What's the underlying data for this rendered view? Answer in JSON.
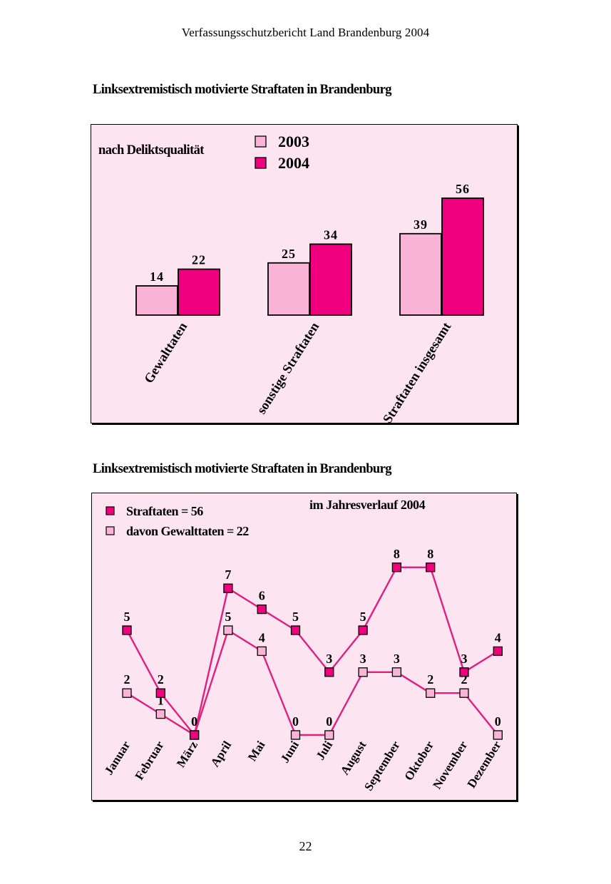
{
  "running_head": "Verfassungsschutzbericht Land Brandenburg 2004",
  "page_number": "22",
  "colors": {
    "light": "#f9b4d8",
    "dark": "#f0007f",
    "panel": "#fce4f1",
    "line": "#e0207f"
  },
  "chart_data": [
    {
      "type": "bar",
      "title": "Linksextremistisch motivierte Straftaten in Brandenburg",
      "subtitle": "nach Deliktsqualität",
      "categories": [
        "Gewalttaten",
        "sonstige Straftaten",
        "Straftaten insgesamt"
      ],
      "series": [
        {
          "name": "2003",
          "values": [
            14,
            25,
            39
          ],
          "color": "#f9b4d8"
        },
        {
          "name": "2004",
          "values": [
            22,
            34,
            56
          ],
          "color": "#f0007f"
        }
      ],
      "ylim": [
        0,
        60
      ],
      "grid": false,
      "legend": "top-center"
    },
    {
      "type": "line",
      "title": "Linksextremistisch motivierte Straftaten in Brandenburg",
      "subtitle": "im Jahresverlauf 2004",
      "categories": [
        "Januar",
        "Februar",
        "März",
        "April",
        "Mai",
        "Juni",
        "Juli",
        "August",
        "September",
        "Oktober",
        "November",
        "Dezember"
      ],
      "series": [
        {
          "name": "Straftaten = 56",
          "values": [
            5,
            2,
            0,
            7,
            6,
            5,
            3,
            5,
            8,
            8,
            3,
            4
          ],
          "color": "#f0007f"
        },
        {
          "name": "davon Gewalttaten = 22",
          "values": [
            2,
            1,
            0,
            5,
            4,
            0,
            0,
            3,
            3,
            2,
            2,
            0
          ],
          "color": "#f9b4d8"
        }
      ],
      "ylim": [
        0,
        8
      ],
      "grid": false,
      "legend": "top-left"
    }
  ]
}
